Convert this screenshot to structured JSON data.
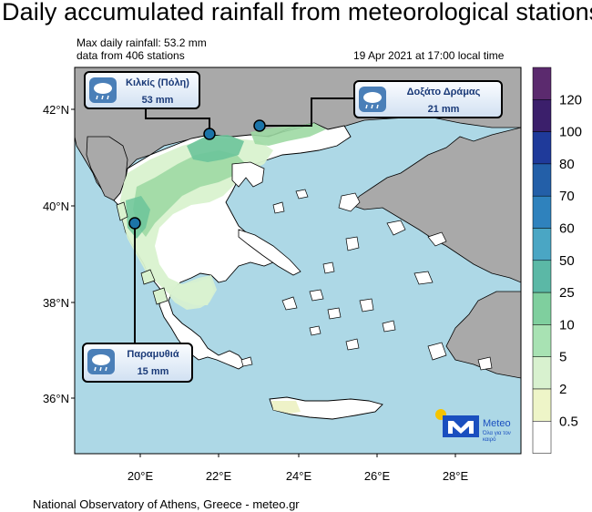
{
  "header": {
    "title": "Daily accumulated rainfall from meteorological stations",
    "max_line": "Max daily rainfall: 53.2 mm",
    "stations_line": "data from 406 stations",
    "timestamp": "19 Apr 2021 at 17:00 local time"
  },
  "map": {
    "lat_ticks": [
      "42°N",
      "40°N",
      "38°N",
      "36°N"
    ],
    "lon_ticks": [
      "20°E",
      "22°E",
      "24°E",
      "26°E",
      "28°E"
    ],
    "colors": {
      "sea": "#add8e6",
      "land_other": "#a9a9a9",
      "land_greece": "#ffffff",
      "rain_light": "#d9f2cf",
      "rain_mid": "#9dd9a3",
      "rain_heavy": "#6cc49a",
      "rain_trace": "#eef2c8"
    }
  },
  "stations": [
    {
      "name": "Κιλκίς (Πόλη)",
      "value": "53 mm",
      "icon": "rain-cloud-icon"
    },
    {
      "name": "Δοξάτο Δράμας",
      "value": "21 mm",
      "icon": "rain-cloud-icon"
    },
    {
      "name": "Παραμυθιά",
      "value": "15 mm",
      "icon": "rain-cloud-icon"
    }
  ],
  "colorbar": {
    "labels": [
      "120",
      "100",
      "80",
      "70",
      "60",
      "50",
      "25",
      "10",
      "5",
      "2",
      "0.5"
    ],
    "colors": [
      "#5b2a6e",
      "#3b1f6b",
      "#1f3a9a",
      "#235fa8",
      "#2f82bd",
      "#4aa6c4",
      "#5bb8a6",
      "#7fcf9e",
      "#a8e2b3",
      "#d8f1cf",
      "#eef5c8",
      "#ffffff"
    ]
  },
  "logo": {
    "name": "Meteo",
    "tagline": "Όλα για τον καιρό"
  },
  "footer": "National Observatory of Athens, Greece - meteo.gr"
}
